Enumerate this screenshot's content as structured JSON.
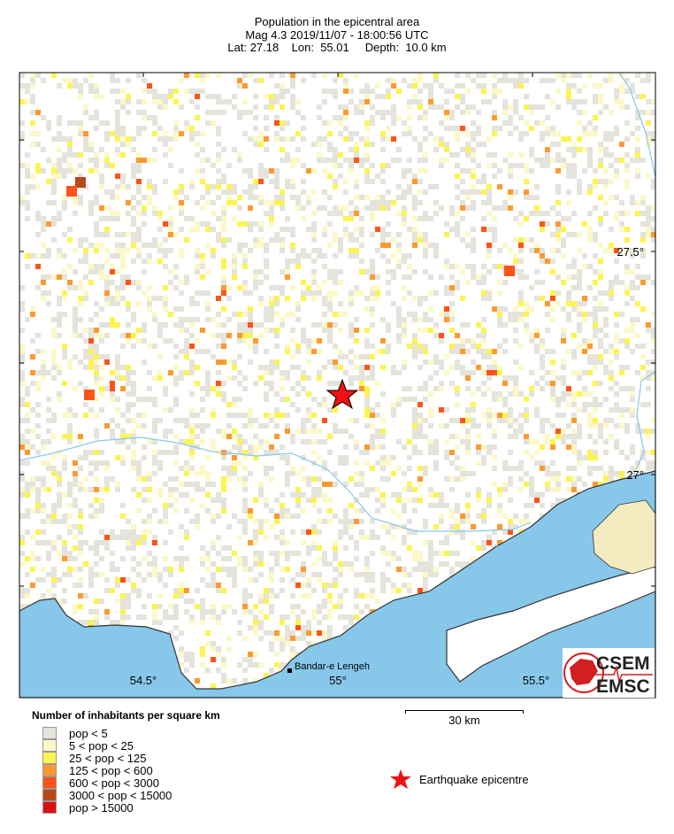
{
  "header": {
    "title": "Population in the epicentral area",
    "line2": "Mag 4.3  2019/11/07 - 18:00:56 UTC",
    "line3": "Lat: 27.18    Lon:  55.01     Depth:  10.0 km"
  },
  "map": {
    "lon_labels": [
      "54.5°",
      "55°",
      "55.5°"
    ],
    "lat_labels": [
      "27.5°",
      "27°"
    ],
    "city": "Bandar-e Lengeh",
    "colors": {
      "sea": "#87c8ea",
      "river": "#87c8ea",
      "land": "#ffffff",
      "coast": "#333333",
      "star": "#ee1111"
    }
  },
  "legend": {
    "title": "Number of inhabitants per square km",
    "items": [
      {
        "label": "pop < 5",
        "color": "#e4e4dc"
      },
      {
        "label": "5 < pop < 25",
        "color": "#fcf8c8"
      },
      {
        "label": "25 < pop < 125",
        "color": "#fcf450"
      },
      {
        "label": "125 < pop < 600",
        "color": "#fc9a30"
      },
      {
        "label": "600 < pop < 3000",
        "color": "#fc5418"
      },
      {
        "label": "3000 < pop < 15000",
        "color": "#b84818"
      },
      {
        "label": "pop > 15000",
        "color": "#dc1010"
      }
    ]
  },
  "scale": {
    "label": "30 km"
  },
  "epicentre": {
    "label": "Earthquake epicentre"
  },
  "logo": {
    "top": "CSEM",
    "bottom": "EMSC"
  }
}
